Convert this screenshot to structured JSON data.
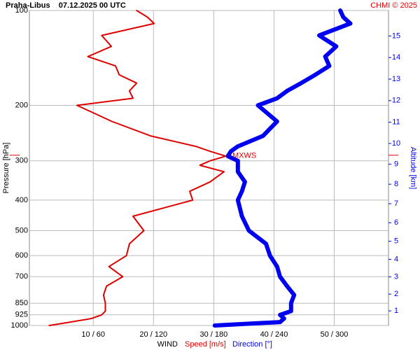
{
  "chart_data": {
    "type": "profile",
    "title": "Praha-Libus    07.12.2025 00 UTC",
    "credit": "CHMI © 2025",
    "ylabel": "Pressure [hPa]",
    "y2label": "Altitude [km]",
    "xlabel": "WIND",
    "log_y": true,
    "ylim": [
      1000,
      100
    ],
    "yticks": [
      100,
      200,
      300,
      400,
      500,
      600,
      700,
      850,
      925,
      1000
    ],
    "y2ticks": [
      1,
      2,
      3,
      4,
      5,
      6,
      7,
      8,
      9,
      10,
      11,
      12,
      13,
      14,
      15
    ],
    "xlim": [
      -0.6,
      59
    ],
    "x2lim": [
      -3.6,
      354
    ],
    "xticks": [
      {
        "value": 10,
        "label": "10 / 60"
      },
      {
        "value": 20,
        "label": "20 / 120"
      },
      {
        "value": 30,
        "label": "30 / 180"
      },
      {
        "value": 40,
        "label": "40 / 240"
      },
      {
        "value": 50,
        "label": "50 / 300"
      }
    ],
    "grid": true,
    "pressure": [
      1000,
      975,
      950,
      925,
      900,
      850,
      800,
      750,
      700,
      650,
      600,
      550,
      500,
      450,
      400,
      375,
      350,
      325,
      310,
      300,
      290,
      280,
      270,
      250,
      225,
      200,
      190,
      180,
      170,
      160,
      150,
      140,
      130,
      120,
      110,
      105,
      100
    ],
    "series": [
      {
        "name": "Speed [m/s]",
        "color": "#e00000",
        "axis": "x",
        "values": [
          2.7,
          6.2,
          9.7,
          11.4,
          12.0,
          12.0,
          11.7,
          12.2,
          14.9,
          12.6,
          15.5,
          16.0,
          18.4,
          16.6,
          26.5,
          26.0,
          29.4,
          31.7,
          27.7,
          29.4,
          32.0,
          29.4,
          27.0,
          19.5,
          13.1,
          7.3,
          16.6,
          16.0,
          17.2,
          14.3,
          13.7,
          9.1,
          13.0,
          11.4,
          20.1,
          19.0,
          17.2
        ]
      },
      {
        "name": "Direction [°]",
        "color": "#0000f0",
        "axis": "x2",
        "values": [
          181,
          246,
          250,
          246,
          257,
          257,
          260,
          253,
          246,
          243,
          236,
          232,
          215,
          208,
          204,
          208,
          211,
          204,
          204,
          204,
          194,
          197,
          204,
          229,
          243,
          224,
          243,
          253,
          267,
          281,
          295,
          291,
          302,
          285,
          316,
          309,
          306
        ]
      }
    ],
    "annotation": {
      "text": "MXWS",
      "pressure": 288
    }
  }
}
